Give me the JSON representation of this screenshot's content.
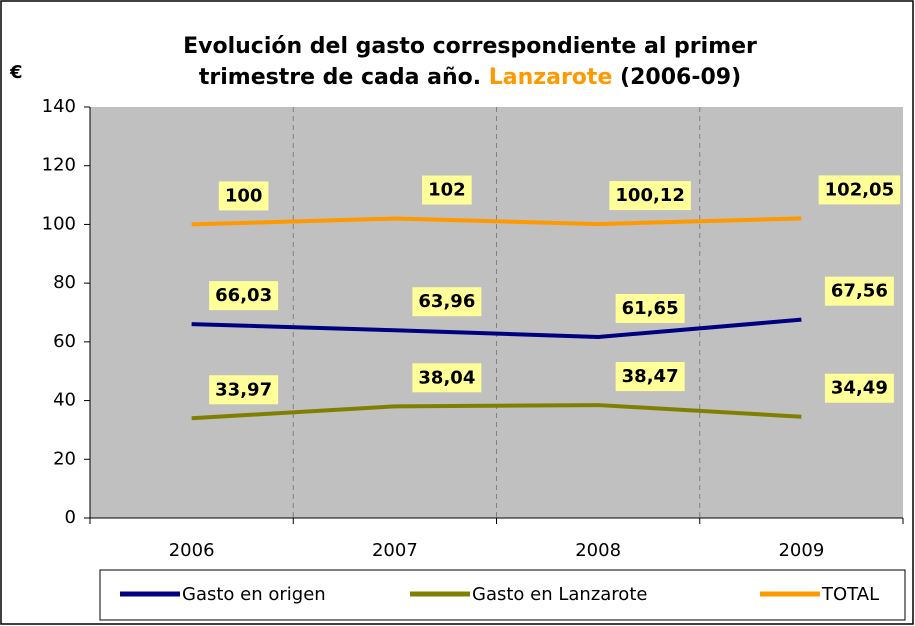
{
  "chart_data": {
    "type": "line",
    "title": [
      "Evolución del gasto correspondiente al primer",
      "trimestre de cada año.",
      "Lanzarote",
      "(2006-09)"
    ],
    "y_label": "€",
    "categories": [
      "2006",
      "2007",
      "2008",
      "2009"
    ],
    "series": [
      {
        "name": "Gasto en origen",
        "color": "#000080",
        "values": [
          66.03,
          63.96,
          61.65,
          67.56
        ],
        "value_labels": [
          "66,03",
          "63,96",
          "61,65",
          "67,56"
        ]
      },
      {
        "name": "Gasto en Lanzarote",
        "color": "#808000",
        "values": [
          33.97,
          38.04,
          38.47,
          34.49
        ],
        "value_labels": [
          "33,97",
          "38,04",
          "38,47",
          "34,49"
        ]
      },
      {
        "name": "TOTAL",
        "color": "#ff9900",
        "values": [
          100,
          102,
          100.12,
          102.05
        ],
        "value_labels": [
          "100",
          "102",
          "100,12",
          "102,05"
        ]
      }
    ],
    "ylim": [
      0,
      140
    ],
    "yticks": [
      0,
      20,
      40,
      60,
      80,
      100,
      120,
      140
    ],
    "legend": "bottom"
  }
}
